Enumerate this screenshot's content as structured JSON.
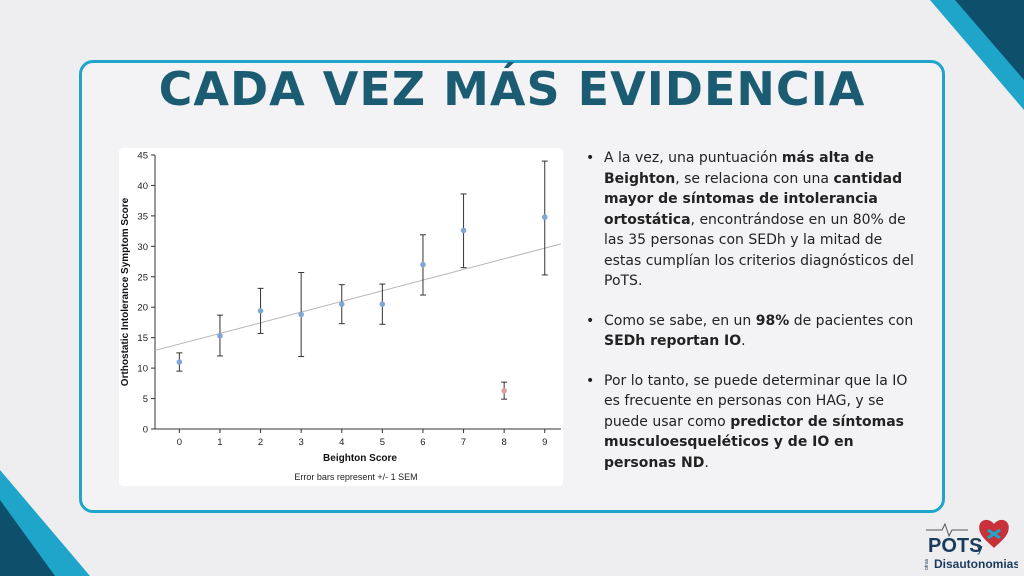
{
  "slide": {
    "title": "CADA VEZ MÁS EVIDENCIA",
    "accent_color": "#1fa5c9",
    "title_color": "#1b5c73",
    "dark_teal": "#0e4f6b"
  },
  "bullets": [
    [
      {
        "t": "A la vez, una puntuación ",
        "b": false
      },
      {
        "t": "más alta de Beighton",
        "b": true
      },
      {
        "t": ", se relaciona con una ",
        "b": false
      },
      {
        "t": "cantidad mayor de síntomas de intolerancia ortostática",
        "b": true
      },
      {
        "t": ", encontrándose en un 80% de las 35 personas con SEDh y la mitad de estas cumplían los criterios diagnósticos del PoTS.",
        "b": false
      }
    ],
    [
      {
        "t": "Como se sabe, en un ",
        "b": false
      },
      {
        "t": "98%",
        "b": true
      },
      {
        "t": " de pacientes con ",
        "b": false
      },
      {
        "t": "SEDh reportan IO",
        "b": true
      },
      {
        "t": ".",
        "b": false
      }
    ],
    [
      {
        "t": "Por lo tanto, se puede determinar que la IO es frecuente en personas con HAG, y se puede usar como ",
        "b": false
      },
      {
        "t": "predictor de síntomas musculoesqueléticos y de IO en personas ND",
        "b": true
      },
      {
        "t": ".",
        "b": false
      }
    ]
  ],
  "logo": {
    "line1": "POTS",
    "line2": "y",
    "line3": "Disautonomias",
    "side": "otras"
  },
  "chart_data": {
    "type": "scatter",
    "xlabel": "Beighton Score",
    "ylabel": "Orthostatic Intolerance Symptom Score",
    "footnote": "Error bars represent +/- 1 SEM",
    "x": [
      0,
      1,
      2,
      3,
      4,
      5,
      6,
      7,
      8,
      9
    ],
    "x_ticks": [
      "0",
      "1",
      "2",
      "3",
      "4",
      "5",
      "6",
      "7",
      "8",
      "9"
    ],
    "y_ticks": [
      "0",
      "5",
      "10",
      "15",
      "20",
      "25",
      "30",
      "35",
      "40",
      "45"
    ],
    "ylim": [
      0,
      45
    ],
    "points": [
      {
        "x": 0,
        "y": 11,
        "low": 9.5,
        "high": 12.5,
        "color": "#7fa7d6"
      },
      {
        "x": 1,
        "y": 15.3,
        "low": 12,
        "high": 18.7,
        "color": "#7fa7d6"
      },
      {
        "x": 2,
        "y": 19.4,
        "low": 15.7,
        "high": 23.1,
        "color": "#7fa7d6"
      },
      {
        "x": 3,
        "y": 18.8,
        "low": 11.9,
        "high": 25.7,
        "color": "#7fa7d6"
      },
      {
        "x": 4,
        "y": 20.5,
        "low": 17.3,
        "high": 23.7,
        "color": "#7fa7d6"
      },
      {
        "x": 5,
        "y": 20.5,
        "low": 17.2,
        "high": 23.8,
        "color": "#7fa7d6"
      },
      {
        "x": 6,
        "y": 27,
        "low": 22,
        "high": 31.9,
        "color": "#7fa7d6"
      },
      {
        "x": 7,
        "y": 32.6,
        "low": 26.5,
        "high": 38.6,
        "color": "#7fa7d6"
      },
      {
        "x": 8,
        "y": 6.3,
        "low": 4.9,
        "high": 7.7,
        "color": "#e0a0a0"
      },
      {
        "x": 9,
        "y": 34.8,
        "low": 25.3,
        "high": 44
      },
      {
        "x": 9,
        "y": 34.8,
        "low": 25.3,
        "high": 44,
        "color": "#7fa7d6"
      }
    ],
    "trendline": {
      "y_at_start": 12.9,
      "y_at_end": 30.4
    },
    "grid": false
  }
}
